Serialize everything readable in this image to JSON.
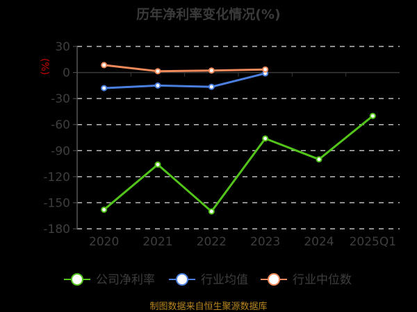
{
  "title": "历年净利率变化情况(%)",
  "footer": "制图数据来自恒生聚源数据库",
  "chart_data": {
    "type": "line",
    "title": "历年净利率变化情况(%)",
    "xlabel": "",
    "ylabel": "(%)",
    "categories": [
      "2020",
      "2021",
      "2022",
      "2023",
      "2024",
      "2025Q1"
    ],
    "yticks": [
      30,
      0,
      -30,
      -60,
      -90,
      -120,
      -150,
      -180
    ],
    "ylim": [
      -180,
      30
    ],
    "grid": "dashed horizontal",
    "legend_position": "bottom",
    "series": [
      {
        "name": "公司净利率",
        "color": "#52c41a",
        "values": [
          -158,
          -106,
          -160,
          -76,
          -100,
          -50
        ]
      },
      {
        "name": "行业均值",
        "color": "#4a7fe0",
        "values": [
          -18,
          -15,
          -16.5,
          -1,
          null,
          null
        ]
      },
      {
        "name": "行业中位数",
        "color": "#f08a5a",
        "values": [
          8.5,
          1.5,
          2.3,
          3.5,
          null,
          null
        ]
      }
    ]
  }
}
